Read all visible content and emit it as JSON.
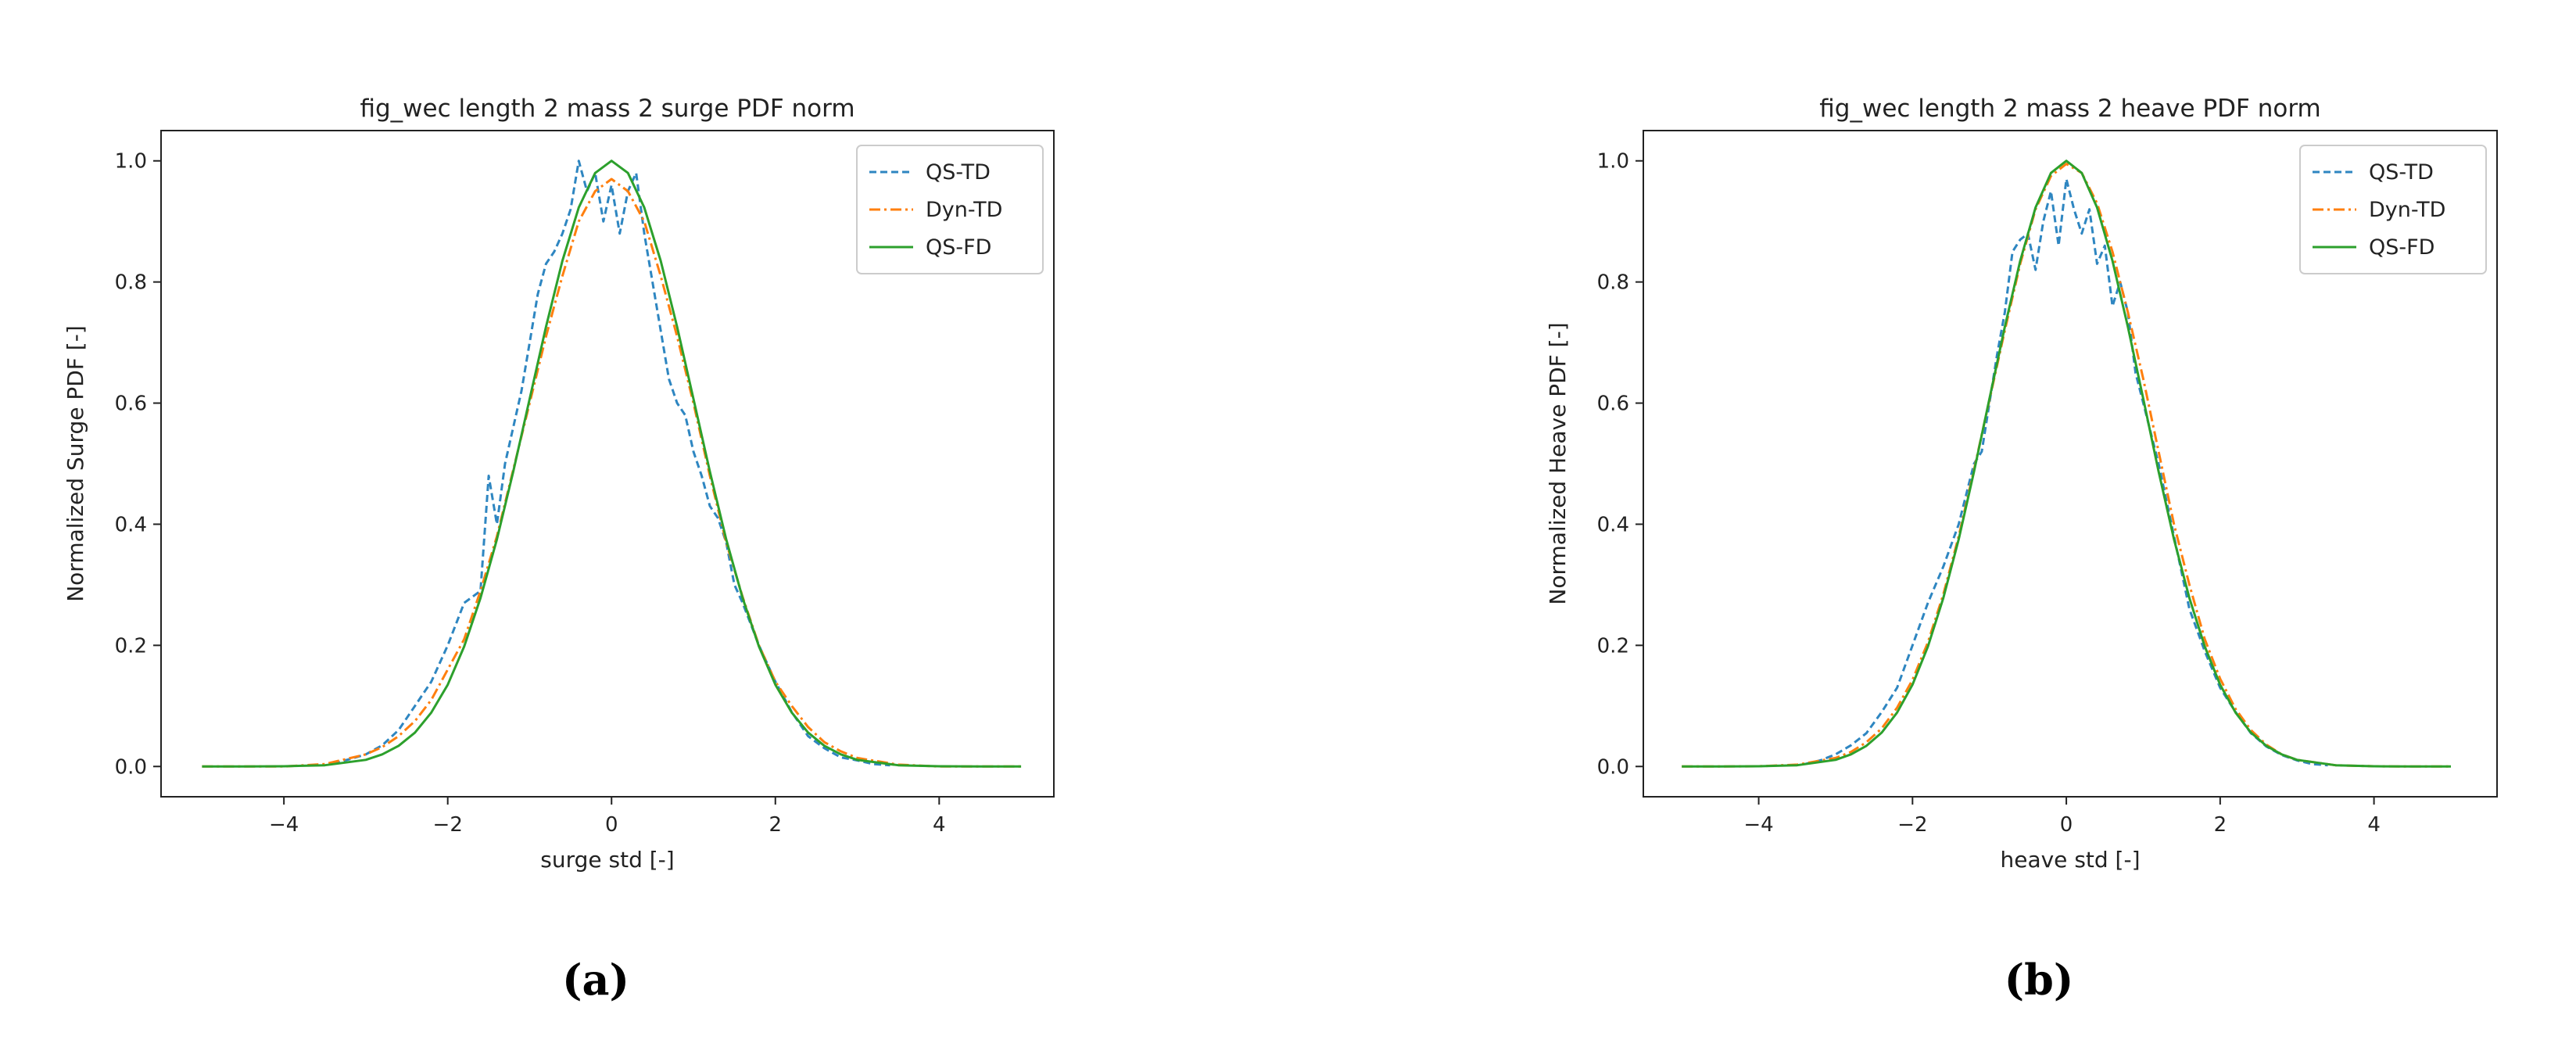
{
  "palette": {
    "QS-TD": "#2e86c1",
    "Dyn-TD": "#ff7f0e",
    "QS-FD": "#2ca02c"
  },
  "chart_data": [
    {
      "type": "line",
      "caption": "(a)",
      "title": "fig_wec length 2 mass 2 surge PDF norm",
      "xlabel": "surge std [-]",
      "ylabel": "Normalized Surge PDF [-]",
      "xlim": [
        -5.5,
        5.4
      ],
      "ylim": [
        -0.05,
        1.05
      ],
      "xticks": [
        -4,
        -2,
        0,
        2,
        4
      ],
      "xtick_labels": [
        "−4",
        "−2",
        "0",
        "2",
        "4"
      ],
      "yticks": [
        0,
        0.2,
        0.4,
        0.6,
        0.8,
        1.0
      ],
      "ytick_labels": [
        "0.0",
        "0.2",
        "0.4",
        "0.6",
        "0.8",
        "1.0"
      ],
      "grid": false,
      "legend_position": "top-right",
      "series": [
        {
          "name": "QS-TD",
          "style": "dashed",
          "x": [
            -3.4,
            -3.2,
            -3.0,
            -2.8,
            -2.6,
            -2.4,
            -2.2,
            -2.0,
            -1.8,
            -1.6,
            -1.5,
            -1.4,
            -1.3,
            -1.2,
            -1.1,
            -1.0,
            -0.9,
            -0.8,
            -0.7,
            -0.6,
            -0.5,
            -0.4,
            -0.3,
            -0.2,
            -0.1,
            0.0,
            0.1,
            0.2,
            0.3,
            0.4,
            0.5,
            0.6,
            0.7,
            0.8,
            0.9,
            1.0,
            1.1,
            1.2,
            1.3,
            1.4,
            1.5,
            1.6,
            1.8,
            2.0,
            2.2,
            2.4,
            2.6,
            2.8,
            3.0,
            3.2,
            3.4
          ],
          "y": [
            0.005,
            0.012,
            0.02,
            0.035,
            0.06,
            0.1,
            0.14,
            0.2,
            0.27,
            0.29,
            0.48,
            0.4,
            0.5,
            0.56,
            0.62,
            0.7,
            0.78,
            0.83,
            0.85,
            0.88,
            0.92,
            1.0,
            0.95,
            0.98,
            0.9,
            0.96,
            0.88,
            0.95,
            0.98,
            0.88,
            0.8,
            0.72,
            0.64,
            0.6,
            0.58,
            0.52,
            0.48,
            0.43,
            0.41,
            0.37,
            0.3,
            0.27,
            0.2,
            0.14,
            0.09,
            0.05,
            0.03,
            0.015,
            0.01,
            0.004,
            0.002
          ]
        },
        {
          "name": "Dyn-TD",
          "style": "dashdot",
          "x": [
            -5.0,
            -4.5,
            -4.0,
            -3.5,
            -3.0,
            -2.8,
            -2.6,
            -2.4,
            -2.2,
            -2.0,
            -1.8,
            -1.6,
            -1.4,
            -1.2,
            -1.0,
            -0.8,
            -0.6,
            -0.4,
            -0.2,
            0.0,
            0.2,
            0.4,
            0.6,
            0.8,
            1.0,
            1.2,
            1.4,
            1.6,
            1.8,
            2.0,
            2.2,
            2.4,
            2.6,
            2.8,
            3.0,
            3.5,
            4.0,
            4.5,
            5.0
          ],
          "y": [
            0.0,
            0.0,
            0.0,
            0.004,
            0.02,
            0.032,
            0.05,
            0.075,
            0.11,
            0.16,
            0.21,
            0.29,
            0.38,
            0.49,
            0.6,
            0.71,
            0.81,
            0.9,
            0.95,
            0.97,
            0.95,
            0.9,
            0.81,
            0.71,
            0.6,
            0.48,
            0.37,
            0.28,
            0.2,
            0.14,
            0.1,
            0.065,
            0.04,
            0.025,
            0.014,
            0.003,
            0.0,
            0.0,
            0.0
          ]
        },
        {
          "name": "QS-FD",
          "style": "solid",
          "x": [
            -5.0,
            -4.5,
            -4.0,
            -3.5,
            -3.0,
            -2.8,
            -2.6,
            -2.4,
            -2.2,
            -2.0,
            -1.8,
            -1.6,
            -1.4,
            -1.2,
            -1.0,
            -0.8,
            -0.6,
            -0.4,
            -0.2,
            0.0,
            0.2,
            0.4,
            0.6,
            0.8,
            1.0,
            1.2,
            1.4,
            1.6,
            1.8,
            2.0,
            2.2,
            2.4,
            2.6,
            2.8,
            3.0,
            3.5,
            4.0,
            4.5,
            5.0
          ],
          "y": [
            0.0,
            0.0,
            0.0003,
            0.002,
            0.011,
            0.02,
            0.034,
            0.056,
            0.089,
            0.135,
            0.198,
            0.278,
            0.375,
            0.487,
            0.607,
            0.726,
            0.835,
            0.923,
            0.98,
            1.0,
            0.98,
            0.923,
            0.835,
            0.726,
            0.607,
            0.487,
            0.375,
            0.278,
            0.198,
            0.135,
            0.089,
            0.056,
            0.034,
            0.02,
            0.011,
            0.002,
            0.0003,
            0.0,
            0.0
          ]
        }
      ]
    },
    {
      "type": "line",
      "caption": "(b)",
      "title": "fig_wec length 2 mass 2 heave PDF norm",
      "xlabel": "heave std [-]",
      "ylabel": "Normalized Heave PDF [-]",
      "xlim": [
        -5.5,
        5.6
      ],
      "ylim": [
        -0.05,
        1.05
      ],
      "xticks": [
        -4,
        -2,
        0,
        2,
        4
      ],
      "xtick_labels": [
        "−4",
        "−2",
        "0",
        "2",
        "4"
      ],
      "yticks": [
        0,
        0.2,
        0.4,
        0.6,
        0.8,
        1.0
      ],
      "ytick_labels": [
        "0.0",
        "0.2",
        "0.4",
        "0.6",
        "0.8",
        "1.0"
      ],
      "grid": false,
      "legend_position": "top-right",
      "series": [
        {
          "name": "QS-TD",
          "style": "dashed",
          "x": [
            -3.4,
            -3.2,
            -3.0,
            -2.8,
            -2.6,
            -2.4,
            -2.2,
            -2.0,
            -1.8,
            -1.6,
            -1.4,
            -1.2,
            -1.1,
            -1.0,
            -0.9,
            -0.8,
            -0.7,
            -0.6,
            -0.5,
            -0.4,
            -0.3,
            -0.2,
            -0.1,
            0.0,
            0.1,
            0.2,
            0.3,
            0.4,
            0.5,
            0.6,
            0.7,
            0.8,
            0.9,
            1.0,
            1.2,
            1.4,
            1.6,
            1.8,
            2.0,
            2.2,
            2.4,
            2.6,
            2.8,
            3.0,
            3.2,
            3.4
          ],
          "y": [
            0.004,
            0.01,
            0.02,
            0.035,
            0.055,
            0.09,
            0.13,
            0.2,
            0.27,
            0.33,
            0.4,
            0.5,
            0.52,
            0.6,
            0.68,
            0.75,
            0.85,
            0.87,
            0.88,
            0.82,
            0.9,
            0.95,
            0.86,
            0.97,
            0.92,
            0.88,
            0.92,
            0.83,
            0.86,
            0.76,
            0.8,
            0.75,
            0.65,
            0.6,
            0.5,
            0.38,
            0.26,
            0.19,
            0.13,
            0.09,
            0.055,
            0.033,
            0.019,
            0.01,
            0.004,
            0.002
          ]
        },
        {
          "name": "Dyn-TD",
          "style": "dashdot",
          "x": [
            -5.0,
            -4.5,
            -4.0,
            -3.5,
            -3.0,
            -2.8,
            -2.6,
            -2.4,
            -2.2,
            -2.0,
            -1.8,
            -1.6,
            -1.4,
            -1.2,
            -1.0,
            -0.8,
            -0.6,
            -0.4,
            -0.2,
            0.0,
            0.2,
            0.4,
            0.6,
            0.8,
            1.0,
            1.2,
            1.4,
            1.6,
            1.8,
            2.0,
            2.2,
            2.4,
            2.6,
            2.8,
            3.0,
            3.5,
            4.0,
            4.5,
            5.0
          ],
          "y": [
            0.0,
            0.0,
            0.0004,
            0.003,
            0.014,
            0.024,
            0.04,
            0.063,
            0.097,
            0.143,
            0.205,
            0.284,
            0.38,
            0.49,
            0.605,
            0.72,
            0.83,
            0.92,
            0.975,
            0.995,
            0.98,
            0.93,
            0.85,
            0.75,
            0.64,
            0.52,
            0.4,
            0.3,
            0.21,
            0.145,
            0.095,
            0.06,
            0.036,
            0.02,
            0.011,
            0.002,
            0.0003,
            0.0,
            0.0
          ]
        },
        {
          "name": "QS-FD",
          "style": "solid",
          "x": [
            -5.0,
            -4.5,
            -4.0,
            -3.5,
            -3.0,
            -2.8,
            -2.6,
            -2.4,
            -2.2,
            -2.0,
            -1.8,
            -1.6,
            -1.4,
            -1.2,
            -1.0,
            -0.8,
            -0.6,
            -0.4,
            -0.2,
            0.0,
            0.2,
            0.4,
            0.6,
            0.8,
            1.0,
            1.2,
            1.4,
            1.6,
            1.8,
            2.0,
            2.2,
            2.4,
            2.6,
            2.8,
            3.0,
            3.5,
            4.0,
            4.5,
            5.0
          ],
          "y": [
            0.0,
            0.0,
            0.0003,
            0.002,
            0.011,
            0.02,
            0.034,
            0.056,
            0.089,
            0.135,
            0.198,
            0.278,
            0.375,
            0.487,
            0.607,
            0.726,
            0.835,
            0.923,
            0.98,
            1.0,
            0.98,
            0.923,
            0.835,
            0.726,
            0.607,
            0.487,
            0.375,
            0.278,
            0.198,
            0.135,
            0.089,
            0.056,
            0.034,
            0.02,
            0.011,
            0.002,
            0.0003,
            0.0,
            0.0
          ]
        }
      ]
    }
  ]
}
